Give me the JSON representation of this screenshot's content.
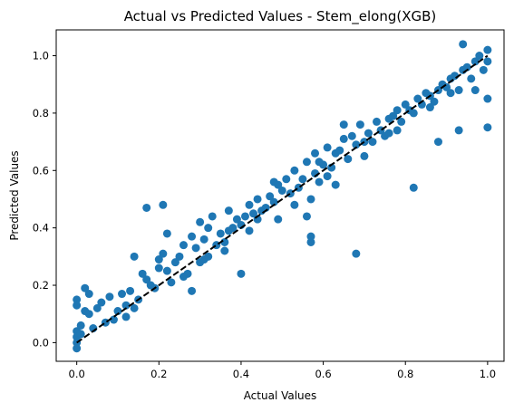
{
  "chart_data": {
    "type": "scatter",
    "title": "Actual vs Predicted Values - Stem_elong(XGB)",
    "xlabel": "Actual Values",
    "ylabel": "Predicted Values",
    "xlim": [
      -0.05,
      1.04
    ],
    "ylim": [
      -0.065,
      1.09
    ],
    "xticks": [
      "0.0",
      "0.2",
      "0.4",
      "0.6",
      "0.8",
      "1.0"
    ],
    "yticks": [
      "0.0",
      "0.2",
      "0.4",
      "0.6",
      "0.8",
      "1.0"
    ],
    "grid": false,
    "colors": {
      "points": "#1f77b4",
      "line": "#000000"
    },
    "reference_line": {
      "x": [
        0,
        1
      ],
      "y": [
        0,
        1
      ],
      "style": "dashed"
    },
    "points": [
      [
        0.0,
        0.15
      ],
      [
        0.0,
        0.13
      ],
      [
        0.0,
        0.04
      ],
      [
        0.0,
        0.02
      ],
      [
        0.0,
        0.0
      ],
      [
        0.0,
        -0.02
      ],
      [
        0.01,
        0.03
      ],
      [
        0.01,
        0.06
      ],
      [
        0.02,
        0.19
      ],
      [
        0.02,
        0.11
      ],
      [
        0.03,
        0.17
      ],
      [
        0.03,
        0.1
      ],
      [
        0.04,
        0.05
      ],
      [
        0.05,
        0.12
      ],
      [
        0.06,
        0.14
      ],
      [
        0.08,
        0.16
      ],
      [
        0.09,
        0.08
      ],
      [
        0.1,
        0.11
      ],
      [
        0.11,
        0.17
      ],
      [
        0.12,
        0.09
      ],
      [
        0.13,
        0.18
      ],
      [
        0.14,
        0.12
      ],
      [
        0.14,
        0.3
      ],
      [
        0.15,
        0.15
      ],
      [
        0.16,
        0.24
      ],
      [
        0.17,
        0.22
      ],
      [
        0.17,
        0.47
      ],
      [
        0.18,
        0.2
      ],
      [
        0.19,
        0.19
      ],
      [
        0.2,
        0.26
      ],
      [
        0.2,
        0.29
      ],
      [
        0.21,
        0.48
      ],
      [
        0.21,
        0.31
      ],
      [
        0.22,
        0.38
      ],
      [
        0.22,
        0.25
      ],
      [
        0.23,
        0.21
      ],
      [
        0.24,
        0.28
      ],
      [
        0.25,
        0.3
      ],
      [
        0.26,
        0.34
      ],
      [
        0.27,
        0.24
      ],
      [
        0.28,
        0.37
      ],
      [
        0.28,
        0.18
      ],
      [
        0.29,
        0.33
      ],
      [
        0.3,
        0.42
      ],
      [
        0.3,
        0.28
      ],
      [
        0.31,
        0.36
      ],
      [
        0.32,
        0.4
      ],
      [
        0.32,
        0.3
      ],
      [
        0.33,
        0.44
      ],
      [
        0.34,
        0.34
      ],
      [
        0.35,
        0.38
      ],
      [
        0.36,
        0.35
      ],
      [
        0.37,
        0.46
      ],
      [
        0.37,
        0.39
      ],
      [
        0.38,
        0.4
      ],
      [
        0.39,
        0.43
      ],
      [
        0.4,
        0.41
      ],
      [
        0.4,
        0.24
      ],
      [
        0.41,
        0.44
      ],
      [
        0.42,
        0.48
      ],
      [
        0.43,
        0.45
      ],
      [
        0.44,
        0.5
      ],
      [
        0.45,
        0.46
      ],
      [
        0.46,
        0.47
      ],
      [
        0.47,
        0.51
      ],
      [
        0.48,
        0.49
      ],
      [
        0.49,
        0.55
      ],
      [
        0.49,
        0.43
      ],
      [
        0.5,
        0.53
      ],
      [
        0.51,
        0.57
      ],
      [
        0.52,
        0.52
      ],
      [
        0.53,
        0.6
      ],
      [
        0.54,
        0.54
      ],
      [
        0.55,
        0.57
      ],
      [
        0.56,
        0.63
      ],
      [
        0.56,
        0.44
      ],
      [
        0.57,
        0.35
      ],
      [
        0.57,
        0.37
      ],
      [
        0.57,
        0.5
      ],
      [
        0.58,
        0.59
      ],
      [
        0.58,
        0.66
      ],
      [
        0.59,
        0.56
      ],
      [
        0.6,
        0.62
      ],
      [
        0.61,
        0.58
      ],
      [
        0.61,
        0.68
      ],
      [
        0.62,
        0.61
      ],
      [
        0.63,
        0.66
      ],
      [
        0.63,
        0.55
      ],
      [
        0.64,
        0.67
      ],
      [
        0.65,
        0.71
      ],
      [
        0.66,
        0.64
      ],
      [
        0.67,
        0.72
      ],
      [
        0.68,
        0.31
      ],
      [
        0.68,
        0.69
      ],
      [
        0.69,
        0.76
      ],
      [
        0.7,
        0.65
      ],
      [
        0.71,
        0.73
      ],
      [
        0.72,
        0.7
      ],
      [
        0.73,
        0.77
      ],
      [
        0.74,
        0.74
      ],
      [
        0.75,
        0.72
      ],
      [
        0.76,
        0.78
      ],
      [
        0.77,
        0.79
      ],
      [
        0.78,
        0.81
      ],
      [
        0.78,
        0.74
      ],
      [
        0.79,
        0.77
      ],
      [
        0.8,
        0.83
      ],
      [
        0.81,
        0.81
      ],
      [
        0.82,
        0.8
      ],
      [
        0.82,
        0.54
      ],
      [
        0.83,
        0.85
      ],
      [
        0.84,
        0.83
      ],
      [
        0.85,
        0.87
      ],
      [
        0.86,
        0.86
      ],
      [
        0.87,
        0.84
      ],
      [
        0.88,
        0.7
      ],
      [
        0.88,
        0.88
      ],
      [
        0.89,
        0.9
      ],
      [
        0.9,
        0.89
      ],
      [
        0.91,
        0.92
      ],
      [
        0.92,
        0.93
      ],
      [
        0.93,
        0.88
      ],
      [
        0.93,
        0.74
      ],
      [
        0.94,
        1.04
      ],
      [
        0.94,
        0.95
      ],
      [
        0.95,
        0.96
      ],
      [
        0.96,
        0.92
      ],
      [
        0.97,
        0.98
      ],
      [
        0.97,
        0.88
      ],
      [
        0.98,
        1.0
      ],
      [
        0.99,
        0.95
      ],
      [
        1.0,
        1.02
      ],
      [
        1.0,
        0.98
      ],
      [
        1.0,
        0.85
      ],
      [
        1.0,
        0.75
      ],
      [
        0.65,
        0.76
      ],
      [
        0.48,
        0.56
      ],
      [
        0.44,
        0.43
      ],
      [
        0.36,
        0.32
      ],
      [
        0.26,
        0.23
      ],
      [
        0.12,
        0.13
      ],
      [
        0.07,
        0.07
      ],
      [
        0.53,
        0.48
      ],
      [
        0.7,
        0.7
      ],
      [
        0.59,
        0.63
      ],
      [
        0.42,
        0.39
      ],
      [
        0.31,
        0.29
      ],
      [
        0.76,
        0.73
      ],
      [
        0.86,
        0.82
      ],
      [
        0.91,
        0.87
      ]
    ]
  }
}
